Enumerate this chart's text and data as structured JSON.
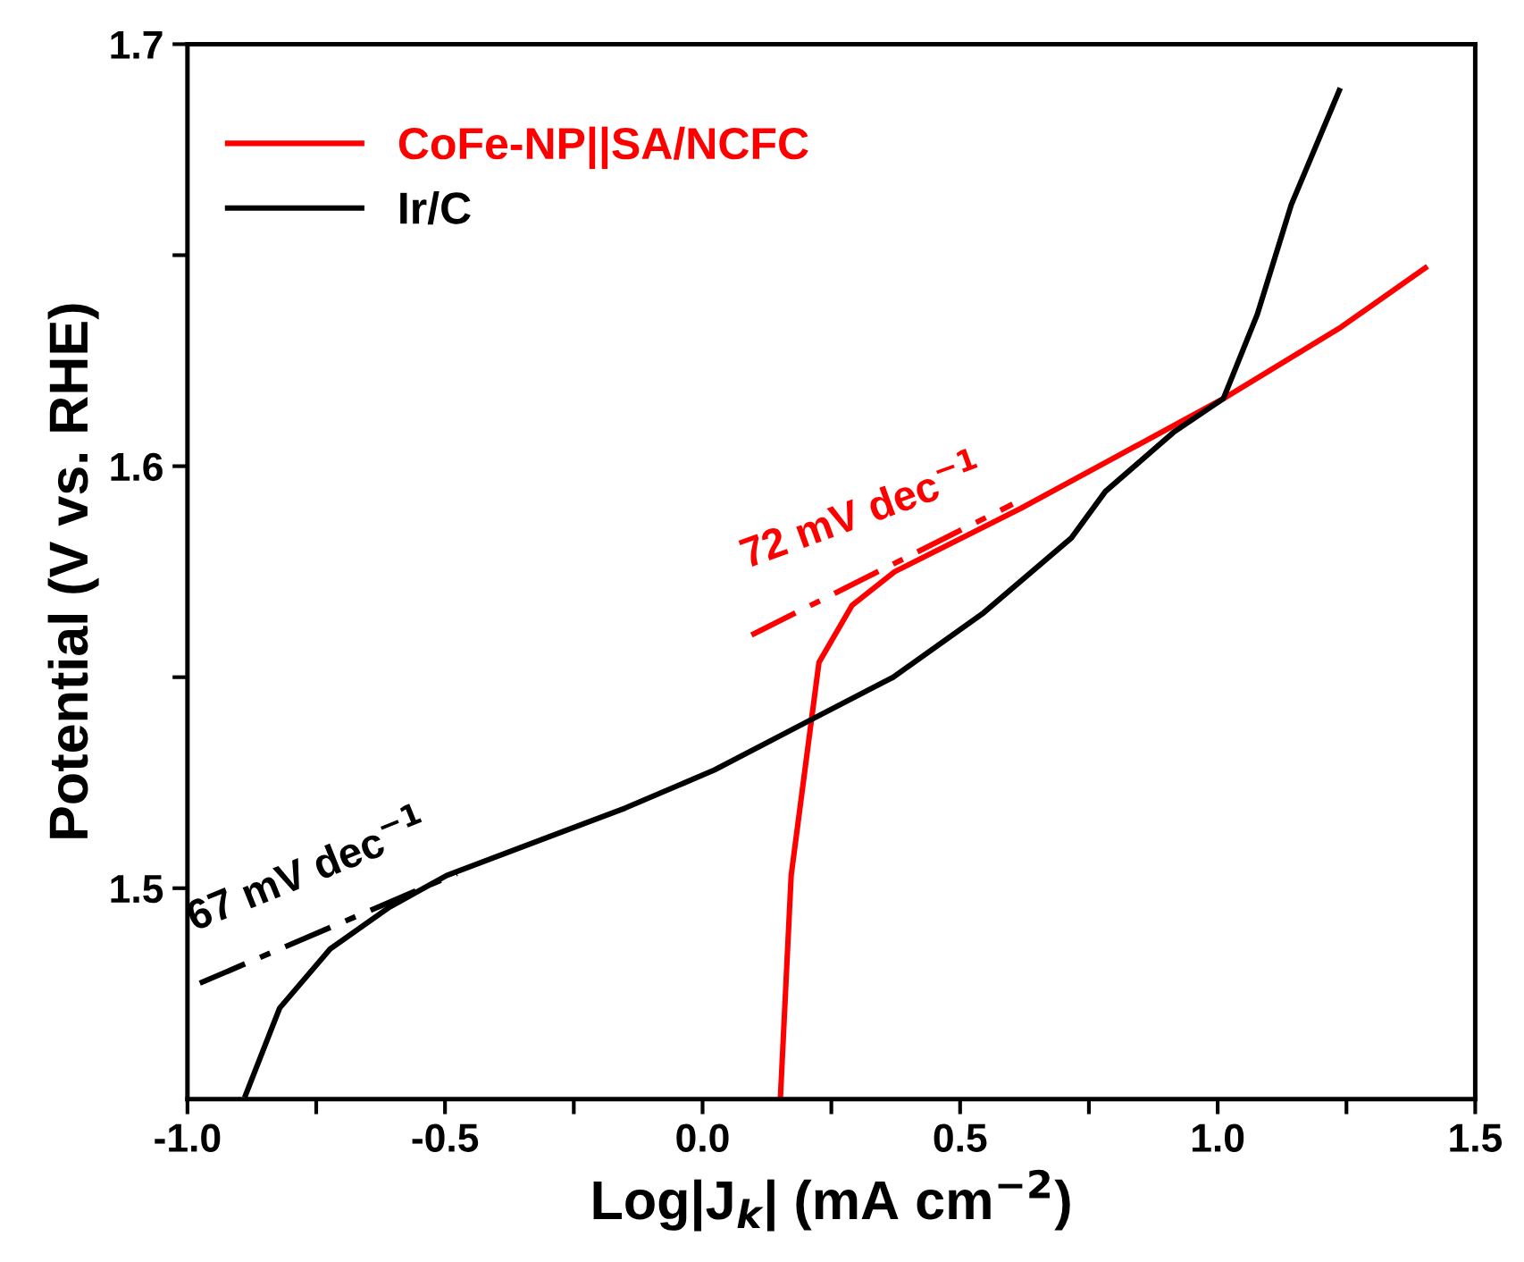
{
  "chart_data": {
    "type": "line",
    "xlabel": "Log|J$_{k}$| (mA cm$^{−2}$)",
    "ylabel": "Potential (V vs. RHE)",
    "xlim": [
      -1.0,
      1.5
    ],
    "ylim": [
      1.45,
      1.7
    ],
    "xticks": [
      {
        "value": -1.0,
        "label": "-1.0"
      },
      {
        "value": -0.75,
        "label": null
      },
      {
        "value": -0.5,
        "label": "-0.5"
      },
      {
        "value": -0.25,
        "label": null
      },
      {
        "value": 0.0,
        "label": "0.0"
      },
      {
        "value": 0.25,
        "label": null
      },
      {
        "value": 0.5,
        "label": "0.5"
      },
      {
        "value": 0.75,
        "label": null
      },
      {
        "value": 1.0,
        "label": "1.0"
      },
      {
        "value": 1.25,
        "label": null
      },
      {
        "value": 1.5,
        "label": "1.5"
      }
    ],
    "yticks": [
      {
        "value": 1.5,
        "label": "1.5"
      },
      {
        "value": 1.55,
        "label": null
      },
      {
        "value": 1.6,
        "label": "1.6"
      },
      {
        "value": 1.65,
        "label": null
      },
      {
        "value": 1.7,
        "label": "1.7"
      }
    ],
    "grid": false,
    "legend": "top left",
    "marker": "none",
    "series": [
      {
        "name": "CoFe-NP||SA/NCFC",
        "color": "#ff0000",
        "line_style": "solid",
        "x": [
          0.151,
          0.172,
          0.21,
          0.226,
          0.29,
          0.373,
          0.618,
          1.011,
          1.24,
          1.403
        ],
        "values": [
          1.45,
          1.503,
          1.5386,
          1.5535,
          1.567,
          1.575,
          1.59,
          1.616,
          1.633,
          1.647
        ]
      },
      {
        "name": "Ir/C",
        "color": "#000000",
        "line_style": "solid",
        "x": [
          -0.887,
          -0.821,
          -0.723,
          -0.608,
          -0.497,
          -0.324,
          -0.15,
          0.023,
          0.196,
          0.37,
          0.543,
          0.716,
          0.782,
          0.914,
          1.011,
          1.077,
          1.143,
          1.236
        ],
        "values": [
          1.451,
          1.4716,
          1.4856,
          1.4955,
          1.503,
          1.511,
          1.519,
          1.528,
          1.539,
          1.55,
          1.565,
          1.583,
          1.594,
          1.608,
          1.616,
          1.636,
          1.662,
          1.689
        ]
      },
      {
        "color": "#ff0000",
        "line_style": "dashed",
        "x": [
          0.095,
          0.602
        ],
        "values": [
          1.56,
          1.591
        ]
      },
      {
        "color": "#000000",
        "line_style": "dashed",
        "x": [
          -0.976,
          -0.477
        ],
        "values": [
          1.4775,
          1.5035
        ]
      }
    ],
    "annotations": [
      {
        "text": "72 mV dec$^{−1}$",
        "x": 0.35,
        "y": 1.5755
      },
      {
        "text": "67 mV dec$^{−1}$",
        "x": -0.7265,
        "y": 1.4905
      }
    ]
  }
}
